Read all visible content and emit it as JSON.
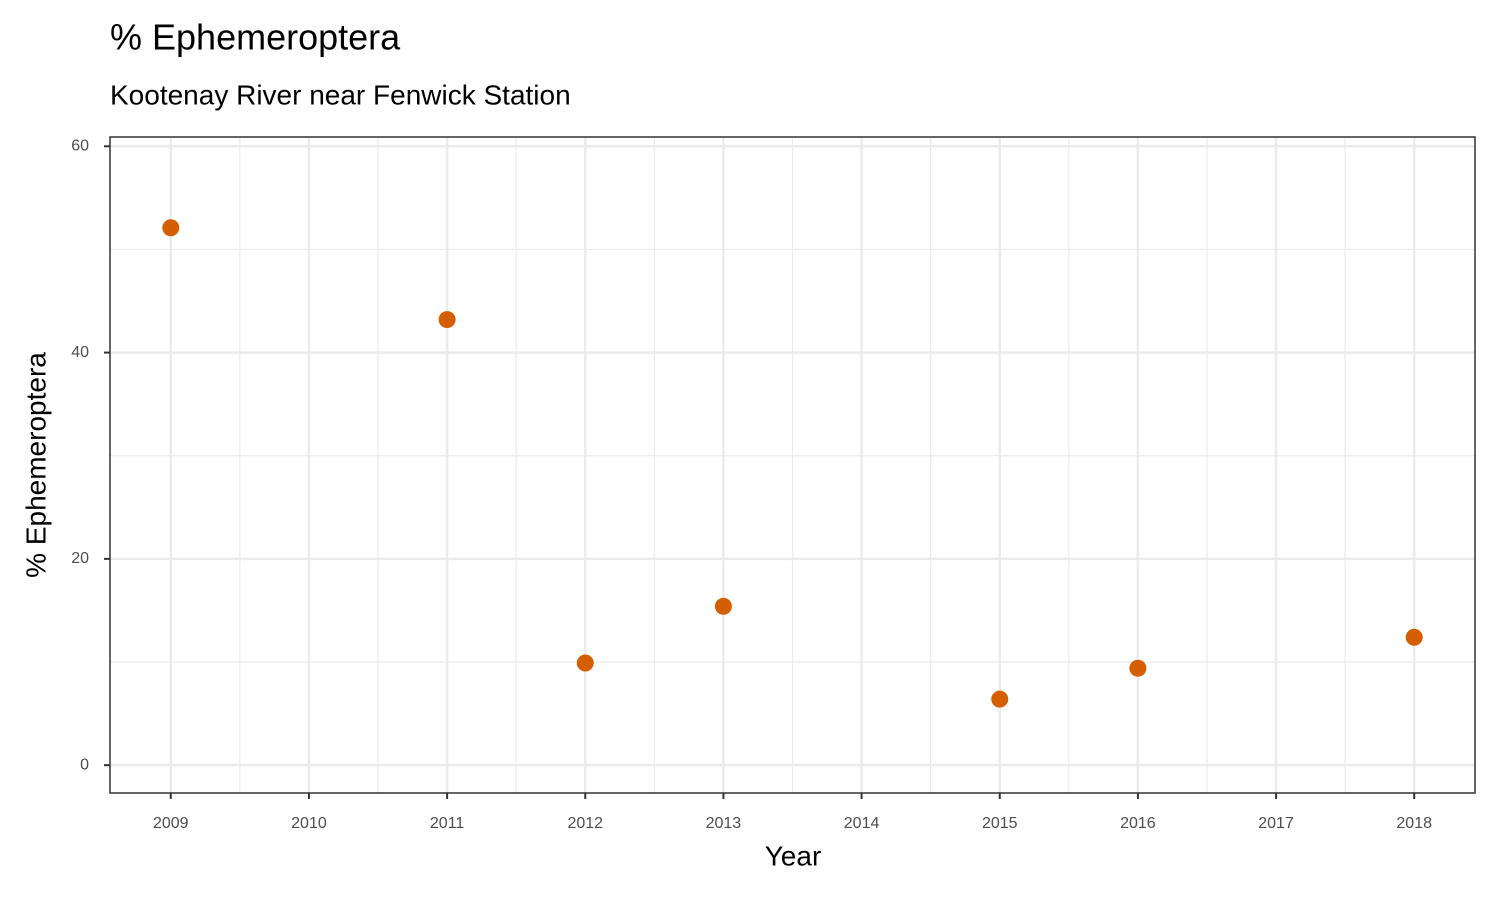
{
  "chart_data": {
    "type": "scatter",
    "title": "% Ephemeroptera",
    "subtitle": "Kootenay River near Fenwick Station",
    "x_label": "Year",
    "y_label": "% Ephemeroptera",
    "x": [
      2009,
      2011,
      2012,
      2013,
      2015,
      2016,
      2018
    ],
    "values": [
      52.1,
      43.2,
      9.9,
      15.4,
      6.4,
      9.4,
      12.4
    ],
    "color": "#D55E00",
    "xlim": [
      2008.56,
      2018.44
    ],
    "xticks": [
      2009,
      2010,
      2011,
      2012,
      2013,
      2014,
      2015,
      2016,
      2017,
      2018
    ],
    "ylim": [
      -2.7,
      60.9
    ],
    "yticks": [
      0,
      20,
      40,
      60
    ],
    "grid": true
  }
}
